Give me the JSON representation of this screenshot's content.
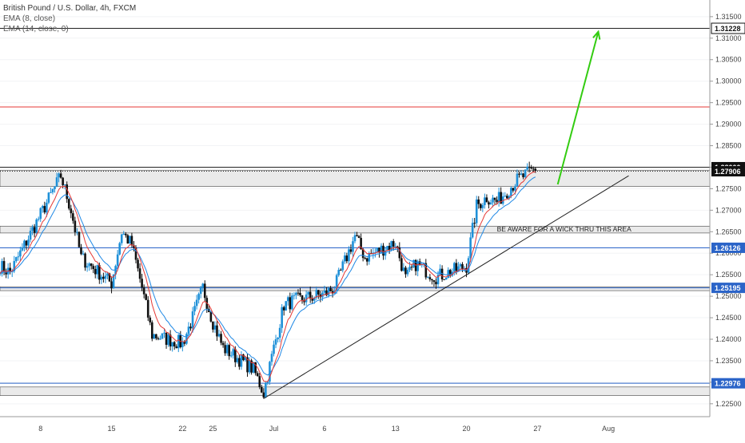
{
  "header": {
    "title": "British Pound / U.S. Dollar, 4h, FXCM",
    "indicator_1": "EMA (8, close)",
    "indicator_2": "EMA (14, close, 0)"
  },
  "colors": {
    "bull": "#1e90d8",
    "bear": "#111111",
    "ema8": "#e53935",
    "ema14": "#1e88e5",
    "resistance_line": "#e53935",
    "projection_arrow": "#33cc11",
    "zone_fill": "#eaeaea"
  },
  "chart_data": {
    "type": "candlestick",
    "price_axis": {
      "ticks": [
        "1.31500",
        "1.31000",
        "1.30500",
        "1.30000",
        "1.29500",
        "1.29000",
        "1.28500",
        "1.28000",
        "1.27500",
        "1.27000",
        "1.26500",
        "1.26000",
        "1.25500",
        "1.25000",
        "1.24500",
        "1.24000",
        "1.23500",
        "1.23000",
        "1.22500"
      ],
      "range": [
        1.222,
        1.3185
      ]
    },
    "time_axis": {
      "labels": [
        "8",
        "15",
        "22",
        "25",
        "Jul",
        "6",
        "13",
        "20",
        "27",
        "Aug"
      ]
    },
    "price_labels": [
      {
        "value": 1.31228,
        "text": "1.31228",
        "style": "outline"
      },
      {
        "value": 1.28,
        "text": "1.28000",
        "style": "dark"
      },
      {
        "value": 1.27906,
        "text": "1.27906",
        "style": "dark"
      },
      {
        "value": 1.26126,
        "text": "1.26126",
        "style": "blue"
      },
      {
        "value": 1.25195,
        "text": "1.25195",
        "style": "blue"
      },
      {
        "value": 1.22976,
        "text": "1.22976",
        "style": "blue"
      }
    ],
    "annotation": "BE AWARE FOR A WICK THRU THIS AREA",
    "close_path": [
      {
        "date": "2020-06-04",
        "close": 1.257
      },
      {
        "date": "2020-06-05",
        "close": 1.2555
      },
      {
        "date": "2020-06-08",
        "close": 1.269
      },
      {
        "date": "2020-06-10",
        "close": 1.278
      },
      {
        "date": "2020-06-11",
        "close": 1.27
      },
      {
        "date": "2020-06-12",
        "close": 1.259
      },
      {
        "date": "2020-06-15",
        "close": 1.253
      },
      {
        "date": "2020-06-16",
        "close": 1.265
      },
      {
        "date": "2020-06-17",
        "close": 1.262
      },
      {
        "date": "2020-06-18",
        "close": 1.252
      },
      {
        "date": "2020-06-19",
        "close": 1.241
      },
      {
        "date": "2020-06-22",
        "close": 1.239
      },
      {
        "date": "2020-06-23",
        "close": 1.245
      },
      {
        "date": "2020-06-24",
        "close": 1.252
      },
      {
        "date": "2020-06-25",
        "close": 1.244
      },
      {
        "date": "2020-06-26",
        "close": 1.238
      },
      {
        "date": "2020-06-29",
        "close": 1.233
      },
      {
        "date": "2020-06-30",
        "close": 1.2275
      },
      {
        "date": "2020-07-01",
        "close": 1.238
      },
      {
        "date": "2020-07-02",
        "close": 1.248
      },
      {
        "date": "2020-07-03",
        "close": 1.249
      },
      {
        "date": "2020-07-06",
        "close": 1.2505
      },
      {
        "date": "2020-07-07",
        "close": 1.252
      },
      {
        "date": "2020-07-08",
        "close": 1.258
      },
      {
        "date": "2020-07-09",
        "close": 1.264
      },
      {
        "date": "2020-07-10",
        "close": 1.259
      },
      {
        "date": "2020-07-13",
        "close": 1.2625
      },
      {
        "date": "2020-07-14",
        "close": 1.254
      },
      {
        "date": "2020-07-15",
        "close": 1.2575
      },
      {
        "date": "2020-07-16",
        "close": 1.256
      },
      {
        "date": "2020-07-17",
        "close": 1.2545
      },
      {
        "date": "2020-07-20",
        "close": 1.257
      },
      {
        "date": "2020-07-21",
        "close": 1.271
      },
      {
        "date": "2020-07-22",
        "close": 1.273
      },
      {
        "date": "2020-07-23",
        "close": 1.272
      },
      {
        "date": "2020-07-24",
        "close": 1.2745
      },
      {
        "date": "2020-07-25",
        "close": 1.277
      },
      {
        "date": "2020-07-27",
        "close": 1.28
      }
    ],
    "zones": [
      {
        "from": 1.2755,
        "to": 1.2793
      },
      {
        "from": 1.2647,
        "to": 1.2663
      },
      {
        "from": 1.2513,
        "to": 1.2522
      },
      {
        "from": 1.2269,
        "to": 1.2289
      }
    ],
    "horizontal_lines": [
      1.31228,
      1.294,
      1.28,
      1.27906,
      1.26126,
      1.25195,
      1.22976
    ],
    "trendline": [
      {
        "date": "2020-06-30",
        "price": 1.2262
      },
      {
        "date": "2020-08-05",
        "price": 1.278
      }
    ],
    "projection": [
      {
        "date": "2020-07-29",
        "price": 1.276
      },
      {
        "date": "2020-08-02",
        "price": 1.3115
      }
    ]
  }
}
